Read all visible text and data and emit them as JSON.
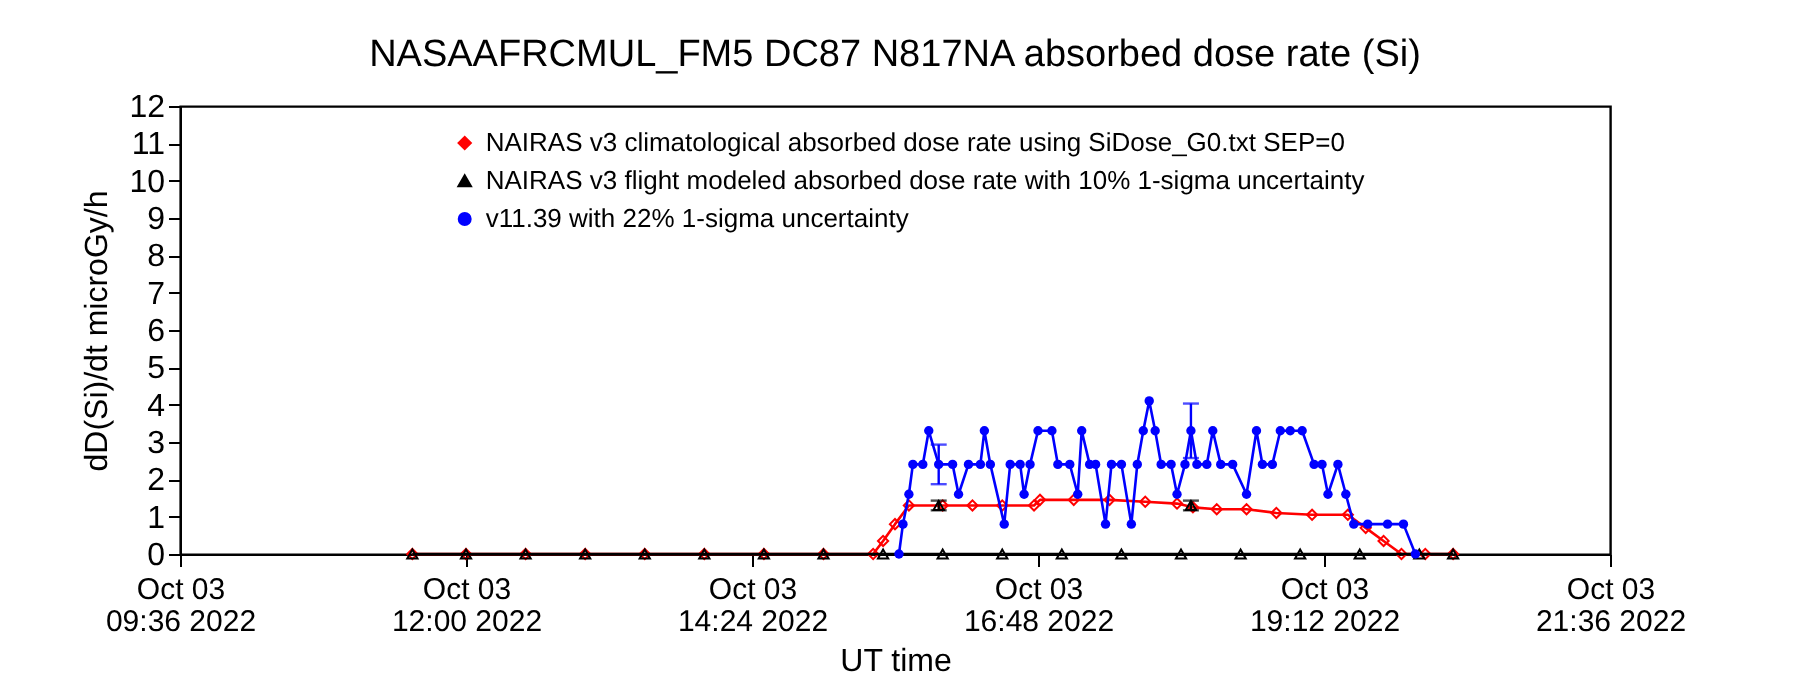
{
  "chart_data": {
    "type": "line",
    "title": "NASAAFRCMUL_FM5 DC87 N817NA absorbed dose rate (Si)",
    "xlabel": "UT time",
    "ylabel": "dD(Si)/dt microGy/h",
    "xlim": [
      "2022-10-03T09:36",
      "2022-10-03T21:36"
    ],
    "xticks": [
      {
        "value": "2022-10-03T09:36",
        "label": "Oct 03\n09:36 2022"
      },
      {
        "value": "2022-10-03T12:00",
        "label": "Oct 03\n12:00 2022"
      },
      {
        "value": "2022-10-03T14:24",
        "label": "Oct 03\n14:24 2022"
      },
      {
        "value": "2022-10-03T16:48",
        "label": "Oct 03\n16:48 2022"
      },
      {
        "value": "2022-10-03T19:12",
        "label": "Oct 03\n19:12 2022"
      },
      {
        "value": "2022-10-03T21:36",
        "label": "Oct 03\n21:36 2022"
      }
    ],
    "ylim": [
      0,
      12
    ],
    "yticks": [
      0,
      1,
      2,
      3,
      4,
      5,
      6,
      7,
      8,
      9,
      10,
      11,
      12
    ],
    "legend": "top",
    "series": [
      {
        "name": "NAIRAS v3 climatological absorbed dose rate using SiDose_G0.txt SEP=0",
        "color": "#ff0000",
        "marker": "diamond",
        "x": [
          "2022-10-03T11:33",
          "2022-10-03T12:00",
          "2022-10-03T12:30",
          "2022-10-03T13:00",
          "2022-10-03T13:30",
          "2022-10-03T14:00",
          "2022-10-03T14:30",
          "2022-10-03T15:00",
          "2022-10-03T15:25",
          "2022-10-03T15:30",
          "2022-10-03T15:36",
          "2022-10-03T15:43",
          "2022-10-03T16:00",
          "2022-10-03T16:15",
          "2022-10-03T16:30",
          "2022-10-03T16:46",
          "2022-10-03T16:49",
          "2022-10-03T17:06",
          "2022-10-03T17:24",
          "2022-10-03T17:42",
          "2022-10-03T17:58",
          "2022-10-03T18:06",
          "2022-10-03T18:18",
          "2022-10-03T18:33",
          "2022-10-03T18:48",
          "2022-10-03T19:06",
          "2022-10-03T19:24",
          "2022-10-03T19:33",
          "2022-10-03T19:42",
          "2022-10-03T19:51",
          "2022-10-03T20:03",
          "2022-10-03T20:17"
        ],
        "values": [
          0,
          0,
          0,
          0,
          0,
          0,
          0,
          0,
          0,
          0.35,
          0.8,
          1.3,
          1.3,
          1.3,
          1.3,
          1.3,
          1.45,
          1.45,
          1.45,
          1.4,
          1.35,
          1.25,
          1.2,
          1.2,
          1.1,
          1.05,
          1.05,
          0.7,
          0.35,
          0,
          0,
          0
        ]
      },
      {
        "name": "NAIRAS v3 flight modeled absorbed dose rate with 10% 1-sigma uncertainty",
        "color": "#000000",
        "marker": "triangle",
        "x": [
          "2022-10-03T11:33",
          "2022-10-03T12:00",
          "2022-10-03T12:30",
          "2022-10-03T13:00",
          "2022-10-03T13:30",
          "2022-10-03T14:00",
          "2022-10-03T14:30",
          "2022-10-03T15:00",
          "2022-10-03T15:30",
          "2022-10-03T16:00",
          "2022-10-03T16:30",
          "2022-10-03T17:00",
          "2022-10-03T17:30",
          "2022-10-03T18:00",
          "2022-10-03T18:30",
          "2022-10-03T19:00",
          "2022-10-03T19:30",
          "2022-10-03T20:00",
          "2022-10-03T20:17"
        ],
        "values": [
          0,
          0,
          0,
          0,
          0,
          0,
          0,
          0,
          0,
          0,
          0,
          0,
          0,
          0,
          0,
          0,
          0,
          0,
          0
        ]
      },
      {
        "name": "v11.39 with 22% 1-sigma uncertainty",
        "color": "#0000ff",
        "marker": "circle",
        "x": [
          "2022-10-03T15:38",
          "2022-10-03T15:40",
          "2022-10-03T15:43",
          "2022-10-03T15:45",
          "2022-10-03T15:50",
          "2022-10-03T15:53",
          "2022-10-03T15:58",
          "2022-10-03T16:05",
          "2022-10-03T16:08",
          "2022-10-03T16:13",
          "2022-10-03T16:19",
          "2022-10-03T16:21",
          "2022-10-03T16:24",
          "2022-10-03T16:31",
          "2022-10-03T16:34",
          "2022-10-03T16:39",
          "2022-10-03T16:41",
          "2022-10-03T16:44",
          "2022-10-03T16:48",
          "2022-10-03T16:55",
          "2022-10-03T16:58",
          "2022-10-03T17:04",
          "2022-10-03T17:08",
          "2022-10-03T17:10",
          "2022-10-03T17:14",
          "2022-10-03T17:17",
          "2022-10-03T17:22",
          "2022-10-03T17:25",
          "2022-10-03T17:30",
          "2022-10-03T17:35",
          "2022-10-03T17:38",
          "2022-10-03T17:41",
          "2022-10-03T17:44",
          "2022-10-03T17:47",
          "2022-10-03T17:50",
          "2022-10-03T17:55",
          "2022-10-03T17:58",
          "2022-10-03T18:02",
          "2022-10-03T18:05",
          "2022-10-03T18:08",
          "2022-10-03T18:13",
          "2022-10-03T18:16",
          "2022-10-03T18:20",
          "2022-10-03T18:26",
          "2022-10-03T18:33",
          "2022-10-03T18:38",
          "2022-10-03T18:41",
          "2022-10-03T18:46",
          "2022-10-03T18:50",
          "2022-10-03T18:55",
          "2022-10-03T19:01",
          "2022-10-03T19:07",
          "2022-10-03T19:11",
          "2022-10-03T19:14",
          "2022-10-03T19:19",
          "2022-10-03T19:23",
          "2022-10-03T19:27",
          "2022-10-03T19:34",
          "2022-10-03T19:44",
          "2022-10-03T19:52",
          "2022-10-03T19:58"
        ],
        "values": [
          0,
          0.8,
          1.6,
          2.4,
          2.4,
          3.3,
          2.4,
          2.4,
          1.6,
          2.4,
          2.4,
          3.3,
          2.4,
          0.8,
          2.4,
          2.4,
          1.6,
          2.4,
          3.3,
          3.3,
          2.4,
          2.4,
          1.6,
          3.3,
          2.4,
          2.4,
          0.8,
          2.4,
          2.4,
          0.8,
          2.4,
          3.3,
          4.1,
          3.3,
          2.4,
          2.4,
          1.6,
          2.4,
          3.3,
          2.4,
          2.4,
          3.3,
          2.4,
          2.4,
          1.6,
          3.3,
          2.4,
          2.4,
          3.3,
          3.3,
          3.3,
          2.4,
          2.4,
          1.6,
          2.4,
          1.6,
          0.8,
          0.8,
          0.8,
          0.8,
          0
        ],
        "errors": [
          null,
          null,
          null,
          null,
          null,
          null,
          0.53,
          null,
          null,
          null,
          null,
          null,
          null,
          null,
          null,
          null,
          null,
          null,
          null,
          null,
          null,
          null,
          null,
          null,
          null,
          null,
          null,
          null,
          null,
          null,
          null,
          null,
          null,
          null,
          null,
          null,
          null,
          null,
          0.73,
          null,
          null,
          null,
          null,
          null,
          null,
          null,
          null,
          null,
          null,
          null,
          null,
          null,
          null,
          null,
          null,
          null,
          null,
          null,
          null,
          null,
          null
        ]
      },
      {
        "type": "scatter",
        "color": "#000000",
        "marker": "triangle",
        "x": [
          "2022-10-03T15:58",
          "2022-10-03T18:05"
        ],
        "values": [
          1.3,
          1.3
        ],
        "errors": [
          0.13,
          0.13
        ]
      }
    ]
  }
}
